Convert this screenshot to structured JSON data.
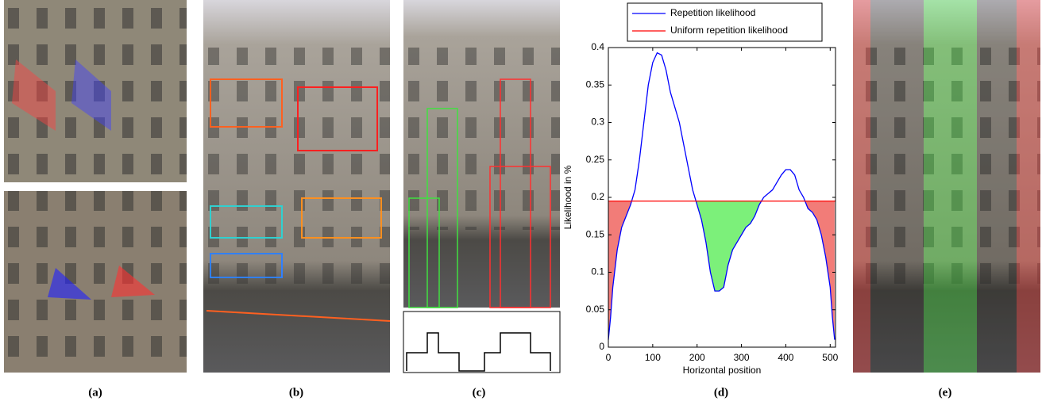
{
  "panels": [
    {
      "label": "(a)"
    },
    {
      "label": "(b)"
    },
    {
      "label": "(c)"
    },
    {
      "label": "(d)"
    },
    {
      "label": "(e)"
    }
  ],
  "chart_data": {
    "type": "line",
    "xlabel": "Horizontal position",
    "ylabel": "Likelihood in %",
    "xlim": [
      0,
      512
    ],
    "xticks": [
      0,
      100,
      200,
      300,
      400,
      500
    ],
    "ylim": [
      0,
      0.4
    ],
    "yticks": [
      0,
      0.05,
      0.1,
      0.15,
      0.2,
      0.25,
      0.3,
      0.35,
      0.4
    ],
    "legend": "top",
    "outer_fill_color": "#f27c78",
    "inner_fill_color": "#7cf07a",
    "series": [
      {
        "name": "Repetition likelihood",
        "color": "#0000ff",
        "x": [
          0,
          5,
          10,
          20,
          30,
          40,
          50,
          60,
          70,
          80,
          90,
          100,
          110,
          120,
          130,
          140,
          150,
          160,
          170,
          180,
          190,
          200,
          210,
          220,
          230,
          240,
          250,
          260,
          270,
          280,
          290,
          300,
          310,
          320,
          330,
          340,
          350,
          360,
          370,
          380,
          390,
          400,
          410,
          420,
          430,
          440,
          450,
          460,
          470,
          480,
          490,
          500,
          505,
          510
        ],
        "values": [
          0.01,
          0.04,
          0.08,
          0.13,
          0.16,
          0.175,
          0.19,
          0.21,
          0.25,
          0.3,
          0.35,
          0.38,
          0.393,
          0.39,
          0.37,
          0.34,
          0.32,
          0.3,
          0.27,
          0.24,
          0.21,
          0.19,
          0.17,
          0.14,
          0.1,
          0.075,
          0.075,
          0.08,
          0.11,
          0.13,
          0.14,
          0.15,
          0.16,
          0.165,
          0.175,
          0.19,
          0.2,
          0.205,
          0.21,
          0.22,
          0.23,
          0.237,
          0.237,
          0.23,
          0.21,
          0.2,
          0.185,
          0.18,
          0.17,
          0.15,
          0.12,
          0.08,
          0.04,
          0.01
        ]
      },
      {
        "name": "Uniform repetition likelihood",
        "color": "#ff0000",
        "x": [
          0,
          512
        ],
        "values": [
          0.195,
          0.195
        ]
      }
    ]
  }
}
